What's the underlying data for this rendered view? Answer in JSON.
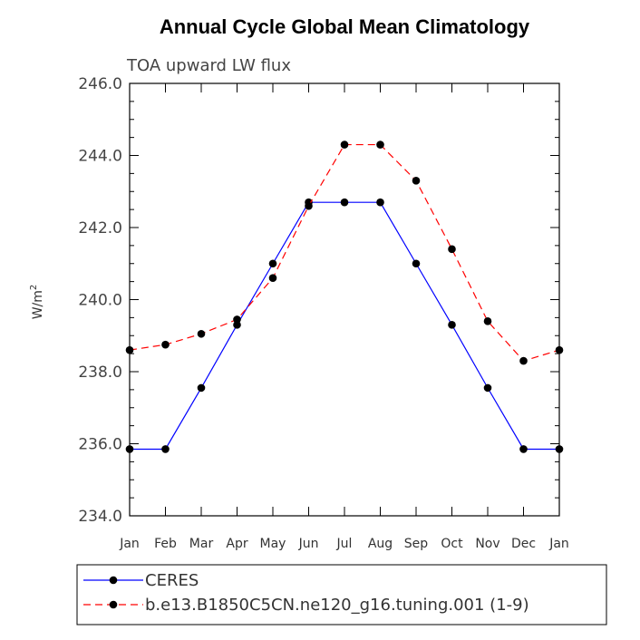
{
  "chart_data": {
    "type": "line",
    "title": "Annual Cycle Global Mean Climatology",
    "subtitle": "TOA upward LW flux",
    "ylabel_base": "W/m",
    "ylabel_sup": "2",
    "xlabel": "",
    "categories": [
      "Jan",
      "Feb",
      "Mar",
      "Apr",
      "May",
      "Jun",
      "Jul",
      "Aug",
      "Sep",
      "Oct",
      "Nov",
      "Dec",
      "Jan"
    ],
    "ylim": [
      234.0,
      246.0
    ],
    "yticks": [
      "234.0",
      "236.0",
      "238.0",
      "240.0",
      "242.0",
      "244.0",
      "246.0"
    ],
    "series": [
      {
        "name": "CERES",
        "color": "#0000ff",
        "dash": "solid",
        "values": [
          235.85,
          235.85,
          237.55,
          239.3,
          241.0,
          242.7,
          242.7,
          242.7,
          241.0,
          239.3,
          237.55,
          235.85,
          235.85
        ]
      },
      {
        "name": "b.e13.B1850C5CN.ne120_g16.tuning.001 (1-9)",
        "color": "#ff0000",
        "dash": "dashed",
        "values": [
          238.6,
          238.75,
          239.05,
          239.45,
          240.6,
          242.6,
          244.3,
          244.3,
          243.3,
          241.4,
          239.4,
          238.3,
          238.6
        ]
      }
    ]
  }
}
